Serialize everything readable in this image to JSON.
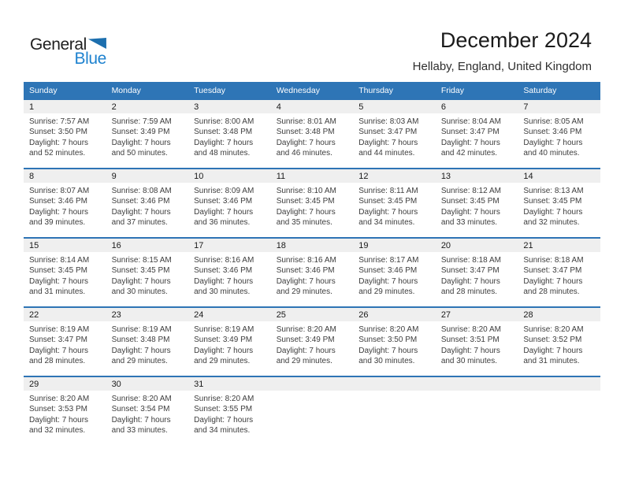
{
  "logo": {
    "part1": "General",
    "part2": "Blue",
    "triangle_icon": "triangle-pennant"
  },
  "header": {
    "title": "December 2024",
    "subtitle": "Hellaby, England, United Kingdom"
  },
  "labels": {
    "sunrise": "Sunrise:",
    "sunset": "Sunset:",
    "daylight": "Daylight:"
  },
  "colors": {
    "header_bar": "#2E75B6",
    "week_divider": "#2E74B5",
    "day_band": "#EFEFEF",
    "logo_blue": "#1E82CF",
    "logo_triangle": "#1C6FAE"
  },
  "calendar": {
    "weekday_headers": [
      "Sunday",
      "Monday",
      "Tuesday",
      "Wednesday",
      "Thursday",
      "Friday",
      "Saturday"
    ],
    "weeks": [
      [
        {
          "day": 1,
          "sunrise": "7:57 AM",
          "sunset": "3:50 PM",
          "daylight": "7 hours and 52 minutes."
        },
        {
          "day": 2,
          "sunrise": "7:59 AM",
          "sunset": "3:49 PM",
          "daylight": "7 hours and 50 minutes."
        },
        {
          "day": 3,
          "sunrise": "8:00 AM",
          "sunset": "3:48 PM",
          "daylight": "7 hours and 48 minutes."
        },
        {
          "day": 4,
          "sunrise": "8:01 AM",
          "sunset": "3:48 PM",
          "daylight": "7 hours and 46 minutes."
        },
        {
          "day": 5,
          "sunrise": "8:03 AM",
          "sunset": "3:47 PM",
          "daylight": "7 hours and 44 minutes."
        },
        {
          "day": 6,
          "sunrise": "8:04 AM",
          "sunset": "3:47 PM",
          "daylight": "7 hours and 42 minutes."
        },
        {
          "day": 7,
          "sunrise": "8:05 AM",
          "sunset": "3:46 PM",
          "daylight": "7 hours and 40 minutes."
        }
      ],
      [
        {
          "day": 8,
          "sunrise": "8:07 AM",
          "sunset": "3:46 PM",
          "daylight": "7 hours and 39 minutes."
        },
        {
          "day": 9,
          "sunrise": "8:08 AM",
          "sunset": "3:46 PM",
          "daylight": "7 hours and 37 minutes."
        },
        {
          "day": 10,
          "sunrise": "8:09 AM",
          "sunset": "3:46 PM",
          "daylight": "7 hours and 36 minutes."
        },
        {
          "day": 11,
          "sunrise": "8:10 AM",
          "sunset": "3:45 PM",
          "daylight": "7 hours and 35 minutes."
        },
        {
          "day": 12,
          "sunrise": "8:11 AM",
          "sunset": "3:45 PM",
          "daylight": "7 hours and 34 minutes."
        },
        {
          "day": 13,
          "sunrise": "8:12 AM",
          "sunset": "3:45 PM",
          "daylight": "7 hours and 33 minutes."
        },
        {
          "day": 14,
          "sunrise": "8:13 AM",
          "sunset": "3:45 PM",
          "daylight": "7 hours and 32 minutes."
        }
      ],
      [
        {
          "day": 15,
          "sunrise": "8:14 AM",
          "sunset": "3:45 PM",
          "daylight": "7 hours and 31 minutes."
        },
        {
          "day": 16,
          "sunrise": "8:15 AM",
          "sunset": "3:45 PM",
          "daylight": "7 hours and 30 minutes."
        },
        {
          "day": 17,
          "sunrise": "8:16 AM",
          "sunset": "3:46 PM",
          "daylight": "7 hours and 30 minutes."
        },
        {
          "day": 18,
          "sunrise": "8:16 AM",
          "sunset": "3:46 PM",
          "daylight": "7 hours and 29 minutes."
        },
        {
          "day": 19,
          "sunrise": "8:17 AM",
          "sunset": "3:46 PM",
          "daylight": "7 hours and 29 minutes."
        },
        {
          "day": 20,
          "sunrise": "8:18 AM",
          "sunset": "3:47 PM",
          "daylight": "7 hours and 28 minutes."
        },
        {
          "day": 21,
          "sunrise": "8:18 AM",
          "sunset": "3:47 PM",
          "daylight": "7 hours and 28 minutes."
        }
      ],
      [
        {
          "day": 22,
          "sunrise": "8:19 AM",
          "sunset": "3:47 PM",
          "daylight": "7 hours and 28 minutes."
        },
        {
          "day": 23,
          "sunrise": "8:19 AM",
          "sunset": "3:48 PM",
          "daylight": "7 hours and 29 minutes."
        },
        {
          "day": 24,
          "sunrise": "8:19 AM",
          "sunset": "3:49 PM",
          "daylight": "7 hours and 29 minutes."
        },
        {
          "day": 25,
          "sunrise": "8:20 AM",
          "sunset": "3:49 PM",
          "daylight": "7 hours and 29 minutes."
        },
        {
          "day": 26,
          "sunrise": "8:20 AM",
          "sunset": "3:50 PM",
          "daylight": "7 hours and 30 minutes."
        },
        {
          "day": 27,
          "sunrise": "8:20 AM",
          "sunset": "3:51 PM",
          "daylight": "7 hours and 30 minutes."
        },
        {
          "day": 28,
          "sunrise": "8:20 AM",
          "sunset": "3:52 PM",
          "daylight": "7 hours and 31 minutes."
        }
      ],
      [
        {
          "day": 29,
          "sunrise": "8:20 AM",
          "sunset": "3:53 PM",
          "daylight": "7 hours and 32 minutes."
        },
        {
          "day": 30,
          "sunrise": "8:20 AM",
          "sunset": "3:54 PM",
          "daylight": "7 hours and 33 minutes."
        },
        {
          "day": 31,
          "sunrise": "8:20 AM",
          "sunset": "3:55 PM",
          "daylight": "7 hours and 34 minutes."
        },
        null,
        null,
        null,
        null
      ]
    ]
  }
}
